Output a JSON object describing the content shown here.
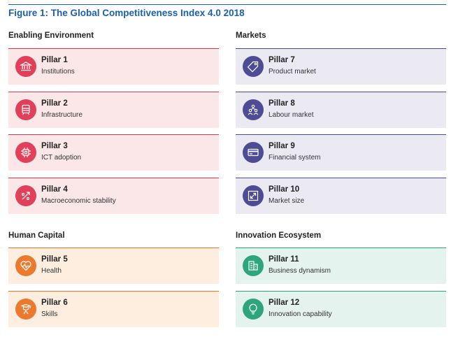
{
  "figure_title": "Figure 1: The Global Competitiveness Index 4.0 2018",
  "colors": {
    "title_blue": "#1d5fa8",
    "enabling_bg": "#fbe6e8",
    "enabling_line": "#d9374f",
    "enabling_icon": "#e0405a",
    "markets_bg": "#ebeaf3",
    "markets_line": "#4c4a8c",
    "markets_icon": "#4d4c94",
    "human_bg": "#fdeee0",
    "human_line": "#e8742a",
    "human_icon": "#eb7a2e",
    "innovation_bg": "#e4f3ed",
    "innovation_line": "#2e9e78",
    "innovation_icon": "#2fa57e"
  },
  "sections": [
    {
      "title": "Enabling Environment",
      "pillars": [
        {
          "name": "Pillar 1",
          "desc": "Institutions",
          "icon": "institution-icon"
        },
        {
          "name": "Pillar 2",
          "desc": "Infrastructure",
          "icon": "train-icon"
        },
        {
          "name": "Pillar 3",
          "desc": "ICT adoption",
          "icon": "chip-icon"
        },
        {
          "name": "Pillar 4",
          "desc": "Macroeconomic stability",
          "icon": "percent-icon"
        }
      ]
    },
    {
      "title": "Markets",
      "pillars": [
        {
          "name": "Pillar 7",
          "desc": "Product market",
          "icon": "tag-icon"
        },
        {
          "name": "Pillar 8",
          "desc": "Labour market",
          "icon": "people-icon"
        },
        {
          "name": "Pillar 9",
          "desc": "Financial system",
          "icon": "credit-card-icon"
        },
        {
          "name": "Pillar 10",
          "desc": "Market size",
          "icon": "expand-icon"
        }
      ]
    },
    {
      "title": "Human Capital",
      "pillars": [
        {
          "name": "Pillar 5",
          "desc": "Health",
          "icon": "heart-pulse-icon"
        },
        {
          "name": "Pillar 6",
          "desc": "Skills",
          "icon": "graduate-icon"
        }
      ]
    },
    {
      "title": "Innovation Ecosystem",
      "pillars": [
        {
          "name": "Pillar 11",
          "desc": "Business dynamism",
          "icon": "building-icon"
        },
        {
          "name": "Pillar 12",
          "desc": "Innovation capability",
          "icon": "lightbulb-icon"
        }
      ]
    }
  ]
}
